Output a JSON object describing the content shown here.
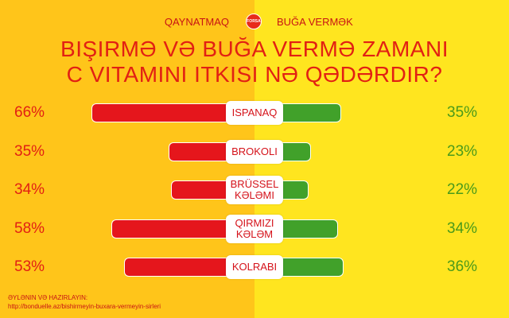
{
  "header": {
    "legend_left": "QAYNATMAQ",
    "legend_right": "BUĞA VERMƏK",
    "badge_text": "FORSA",
    "title_line1": "BIŞIRMƏ VƏ BUĞA VERMƏ ZAMANI",
    "title_line2": "C VITAMINI ITKISI NƏ QƏDƏRDIR?"
  },
  "colors": {
    "left_bg": "#FFC51A",
    "right_bg": "#FFE51F",
    "boiling": "#E5161C",
    "steaming": "#41A12A"
  },
  "chart_data": {
    "type": "bar",
    "title": "BIŞIRMƏ VƏ BUĞA VERMƏ ZAMANI C VITAMINI ITKISI NƏ QƏDƏRDIR?",
    "categories": [
      "ISPANAQ",
      "BROKOLI",
      "BRÜSSEL KƏLƏMI",
      "QIRMIZI KƏLƏM",
      "KOLRABI"
    ],
    "series": [
      {
        "name": "QAYNATMAQ",
        "values": [
          66,
          35,
          34,
          58,
          53
        ],
        "labels": [
          "66%",
          "35%",
          "34%",
          "58%",
          "53%"
        ]
      },
      {
        "name": "BUĞA VERMƏK",
        "values": [
          35,
          23,
          22,
          34,
          36
        ],
        "labels": [
          "35%",
          "23%",
          "22%",
          "34%",
          "36%"
        ]
      }
    ],
    "legend": "top-center",
    "grid": false
  },
  "footer": {
    "line1": "ƏYLƏNIN VƏ HAZIRLAYIN:",
    "line2": "http://bonduelle.az/bishirmeyin-buxara-vermeyin-sirleri"
  }
}
